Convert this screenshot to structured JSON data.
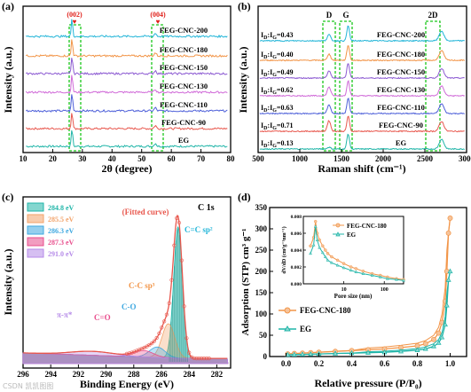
{
  "watermark": "CSDN 凯凯图图",
  "colors": {
    "EG": "#1fb5a8",
    "FEG-CNC-90": "#e8574d",
    "FEG-CNC-110": "#4d5fd9",
    "FEG-CNC-130": "#d06ad8",
    "FEG-CNC-150": "#8c5ad2",
    "FEG-CNC-180": "#f29548",
    "FEG-CNC-200": "#22b5d8",
    "highlight": "#19c619",
    "red_marker": "#e0201a"
  },
  "chart_data": [
    {
      "panel": "(a)",
      "type": "line",
      "xlabel": "2θ (degree)",
      "ylabel": "Intensity (a.u.)",
      "xlim": [
        10,
        80
      ],
      "xticks": [
        "10",
        "20",
        "30",
        "40",
        "50",
        "60",
        "70",
        "80"
      ],
      "peak_labels": [
        "(002)",
        "(004)"
      ],
      "peak_positions": [
        26.5,
        54.6
      ],
      "series": [
        {
          "name": "EG",
          "color": "#1fb5a8"
        },
        {
          "name": "FEG-CNC-90",
          "color": "#e8574d"
        },
        {
          "name": "FEG-CNC-110",
          "color": "#4d5fd9"
        },
        {
          "name": "FEG-CNC-130",
          "color": "#d06ad8"
        },
        {
          "name": "FEG-CNC-150",
          "color": "#8c5ad2"
        },
        {
          "name": "FEG-CNC-180",
          "color": "#f29548"
        },
        {
          "name": "FEG-CNC-200",
          "color": "#22b5d8"
        }
      ]
    },
    {
      "panel": "(b)",
      "type": "line",
      "xlabel": "Raman shift (cm⁻¹)",
      "ylabel": "Intensity (a.u.)",
      "xlim": [
        500,
        3000
      ],
      "xticks": [
        "500",
        "1000",
        "1500",
        "2000",
        "2500",
        "3000"
      ],
      "band_labels": [
        "D",
        "G",
        "2D"
      ],
      "band_positions": [
        1350,
        1580,
        2700
      ],
      "ratios": [
        {
          "name": "EG",
          "text": "I_D:I_G=0.13"
        },
        {
          "name": "FEG-CNC-90",
          "text": "I_D:I_G=0.71"
        },
        {
          "name": "FEG-CNC-110",
          "text": "I_D:I_G=0.63"
        },
        {
          "name": "FEG-CNC-130",
          "text": "I_D:I_G=0.62"
        },
        {
          "name": "FEG-CNC-150",
          "text": "I_D:I_G=0.49"
        },
        {
          "name": "FEG-CNC-180",
          "text": "I_D:I_G=0.40"
        },
        {
          "name": "FEG-CNC-200",
          "text": "I_D:I_G=0.43"
        }
      ],
      "series": [
        {
          "name": "EG",
          "color": "#1fb5a8"
        },
        {
          "name": "FEG-CNC-90",
          "color": "#e8574d"
        },
        {
          "name": "FEG-CNC-110",
          "color": "#4d5fd9"
        },
        {
          "name": "FEG-CNC-130",
          "color": "#d06ad8"
        },
        {
          "name": "FEG-CNC-150",
          "color": "#8c5ad2"
        },
        {
          "name": "FEG-CNC-180",
          "color": "#f29548"
        },
        {
          "name": "FEG-CNC-200",
          "color": "#22b5d8"
        }
      ]
    },
    {
      "panel": "(c)",
      "type": "area",
      "title": "C 1s",
      "xlabel": "Binding Energy (eV)",
      "ylabel": "Intensity (a.u.)",
      "xlim": [
        296,
        281
      ],
      "xticks": [
        "296",
        "294",
        "292",
        "290",
        "288",
        "286",
        "284",
        "282"
      ],
      "fit_label": "(Fitted curve)",
      "legend": [
        "284.8 eV",
        "285.5 eV",
        "286.3 eV",
        "287.3 eV",
        "291.0 eV"
      ],
      "legend_colors": [
        "#1fb5a8",
        "#f2a36a",
        "#3ea8e0",
        "#e84d8c",
        "#b58ae8"
      ],
      "peaks": [
        {
          "label": "C=C sp²",
          "center": 284.8,
          "height": 100
        },
        {
          "label": "C-C sp³",
          "center": 285.5,
          "height": 26
        },
        {
          "label": "C-O",
          "center": 286.3,
          "height": 8
        },
        {
          "label": "C=O",
          "center": 287.3,
          "height": 5
        },
        {
          "label": "π-π*",
          "center": 291.0,
          "height": 3
        }
      ]
    },
    {
      "panel": "(d)",
      "type": "line",
      "xlabel": "Relative pressure (P/P₀)",
      "ylabel": "Adsorption (STP) cm³ g⁻¹",
      "xlim": [
        -0.1,
        1.1
      ],
      "ylim": [
        0,
        350
      ],
      "xticks": [
        "0.0",
        "0.2",
        "0.4",
        "0.6",
        "0.8",
        "1.0"
      ],
      "yticks": [
        "0",
        "50",
        "100",
        "150",
        "200",
        "250",
        "300",
        "350"
      ],
      "series": [
        {
          "name": "FEG-CNC-180",
          "color": "#f29548",
          "x": [
            0.01,
            0.05,
            0.1,
            0.15,
            0.2,
            0.3,
            0.4,
            0.5,
            0.6,
            0.7,
            0.8,
            0.85,
            0.9,
            0.93,
            0.95,
            0.97,
            0.98,
            0.99,
            1.0
          ],
          "y": [
            6,
            7,
            8,
            9,
            10,
            12,
            14,
            16,
            18,
            21,
            25,
            30,
            40,
            55,
            80,
            130,
            200,
            290,
            325
          ]
        },
        {
          "name": "EG",
          "color": "#1fb5a8",
          "x": [
            0.01,
            0.05,
            0.1,
            0.15,
            0.2,
            0.3,
            0.4,
            0.5,
            0.6,
            0.7,
            0.8,
            0.85,
            0.9,
            0.93,
            0.95,
            0.97,
            0.98,
            0.99,
            1.0
          ],
          "y": [
            4,
            4.5,
            5,
            5.5,
            6,
            7,
            8,
            9,
            10,
            12,
            15,
            18,
            24,
            32,
            45,
            75,
            120,
            180,
            200
          ]
        }
      ],
      "inset": {
        "xlabel": "Pore size (nm)",
        "ylabel": "dV/dD (cm³g⁻¹nm⁻¹)",
        "xscale": "log",
        "xlim": [
          1,
          300
        ],
        "ylim": [
          0,
          0.008
        ],
        "xticks": [
          "10",
          "100"
        ],
        "yticks": [
          "0.000",
          "0.002",
          "0.004",
          "0.006",
          "0.008"
        ],
        "series": [
          {
            "name": "FEG-CNC-180",
            "color": "#f29548",
            "x": [
              1.5,
              1.8,
              2.0,
              2.2,
              2.5,
              3,
              3.5,
              4,
              5,
              7,
              10,
              15,
              20,
              30,
              50,
              80,
              120,
              200,
              300
            ],
            "y": [
              0.0045,
              0.0055,
              0.0074,
              0.006,
              0.0052,
              0.0045,
              0.004,
              0.0036,
              0.0032,
              0.0028,
              0.0024,
              0.002,
              0.0018,
              0.0015,
              0.0012,
              0.001,
              0.0008,
              0.0006,
              0.0005
            ]
          },
          {
            "name": "EG",
            "color": "#1fb5a8",
            "x": [
              1.5,
              1.8,
              2.0,
              2.2,
              2.5,
              3,
              3.5,
              4,
              5,
              7,
              10,
              15,
              20,
              30,
              50,
              80,
              120,
              200,
              300
            ],
            "y": [
              0.0036,
              0.0046,
              0.0068,
              0.0052,
              0.0043,
              0.0037,
              0.0032,
              0.0028,
              0.0025,
              0.0022,
              0.0019,
              0.0016,
              0.0014,
              0.0012,
              0.001,
              0.0008,
              0.0006,
              0.0005,
              0.0004
            ]
          }
        ]
      }
    }
  ]
}
